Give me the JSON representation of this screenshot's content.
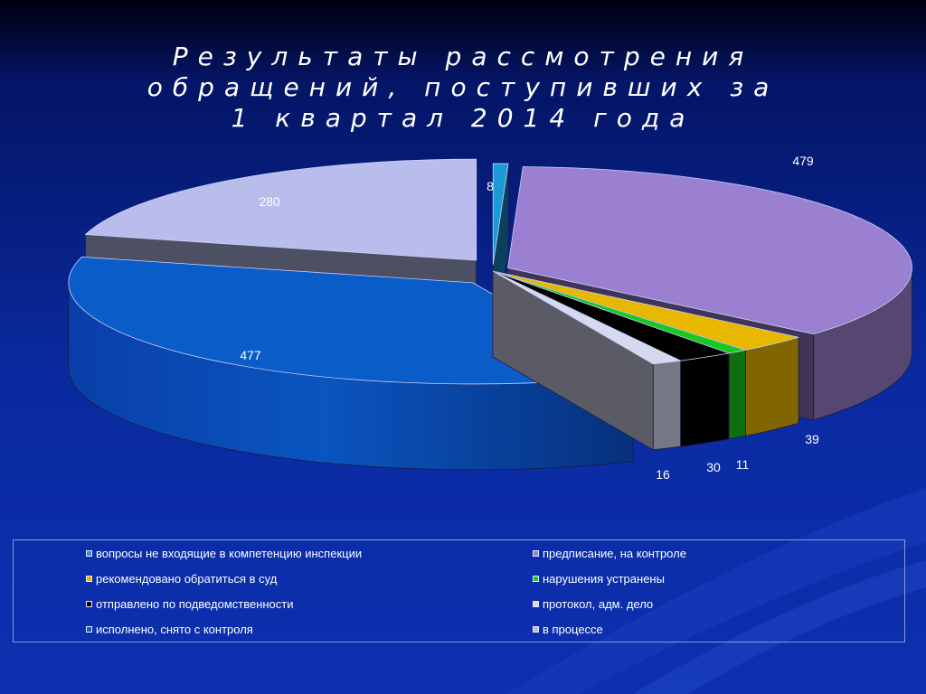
{
  "title": {
    "line1": "Результаты рассмотрения",
    "line2": "обращений, поступивших за",
    "line3": "1 квартал 2014 года"
  },
  "chart_data": {
    "type": "pie",
    "title": "Результаты рассмотрения обращений, поступивших за 1 квартал 2014 года",
    "style": "3d-exploded",
    "legend_position": "bottom",
    "slices": [
      {
        "label": "вопросы не входящие в компетенцию инспекции",
        "value": 8,
        "color": "#1a9ad6"
      },
      {
        "label": "предписание, на контроле",
        "value": 479,
        "color": "#9b7fd0"
      },
      {
        "label": "рекомендовано обратиться в суд",
        "value": 39,
        "color": "#e8b800"
      },
      {
        "label": "нарушения устранены",
        "value": 11,
        "color": "#19c81e"
      },
      {
        "label": "отправлено по подведомственности",
        "value": 30,
        "color": "#000000"
      },
      {
        "label": "протокол, адм. дело",
        "value": 16,
        "color": "#d6d8f0"
      },
      {
        "label": "исполнено, снято с контроля",
        "value": 477,
        "color": "#0a5cc8"
      },
      {
        "label": "в процессе",
        "value": 280,
        "color": "#b8bdec"
      }
    ]
  }
}
